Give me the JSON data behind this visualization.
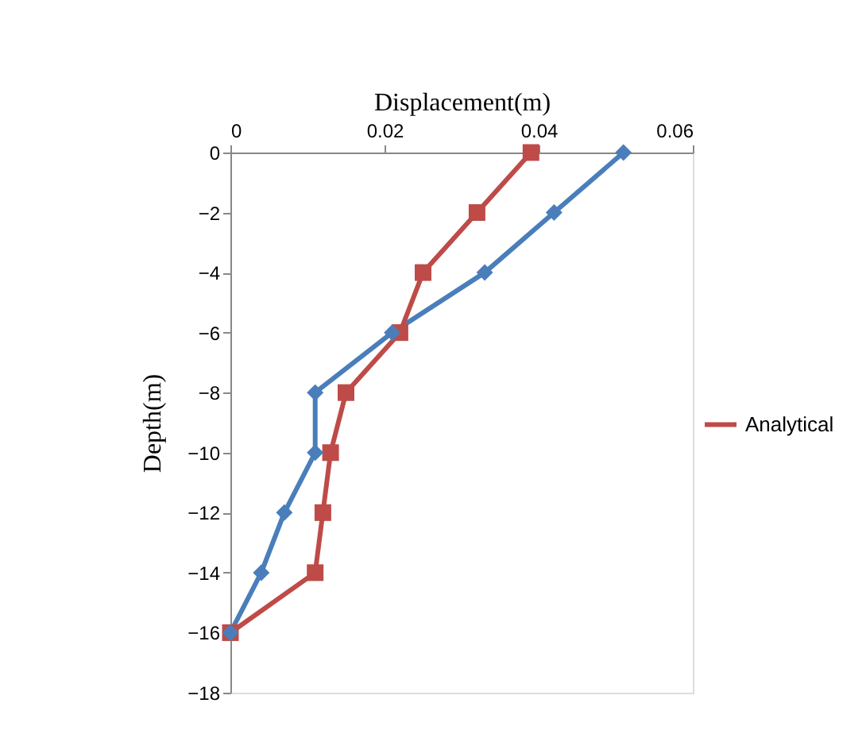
{
  "chart_data": {
    "type": "line",
    "xlabel": "Displacement(m)",
    "ylabel": "Depth(m)",
    "xlim": [
      0,
      0.06
    ],
    "xticks": [
      0,
      0.02,
      0.04,
      0.06
    ],
    "ylim": [
      -18,
      0
    ],
    "yticks": [
      0,
      -2,
      -4,
      -6,
      -8,
      -10,
      -12,
      -14,
      -16,
      -18
    ],
    "grid": false,
    "legend": "right",
    "line_style": "solid",
    "series": [
      {
        "color": "#4a7ebb",
        "marker": "diamond",
        "x": [
          0.051,
          0.042,
          0.033,
          0.021,
          0.011,
          0.011,
          0.007,
          0.004,
          0
        ],
        "values": [
          0,
          -2,
          -4,
          -6,
          -8,
          -10,
          -12,
          -14,
          -16
        ]
      },
      {
        "name": "Analytical",
        "color": "#be4b48",
        "marker": "square",
        "x": [
          0.039,
          0.032,
          0.025,
          0.022,
          0.015,
          0.013,
          0.012,
          0.011,
          0
        ],
        "values": [
          0,
          -2,
          -4,
          -6,
          -8,
          -10,
          -12,
          -14,
          -16
        ]
      }
    ]
  }
}
